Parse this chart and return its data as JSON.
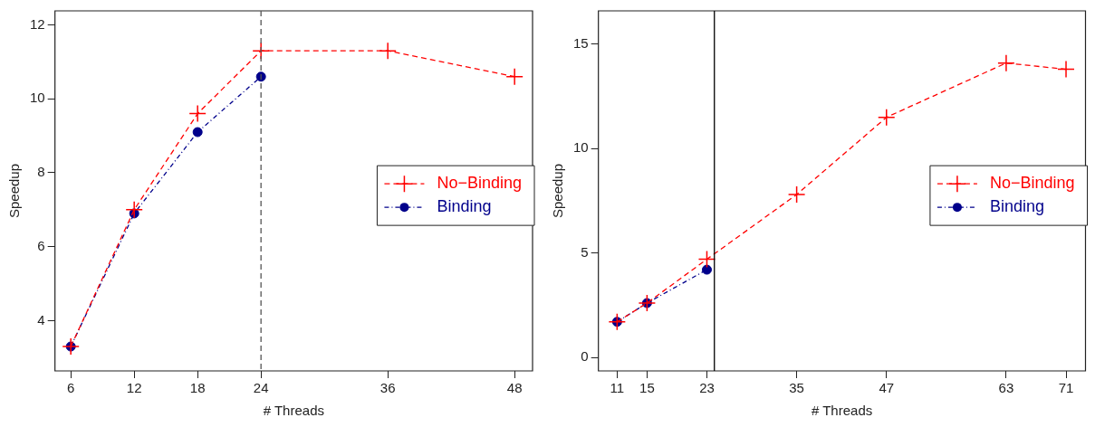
{
  "chart_data": [
    {
      "type": "line",
      "xlabel": "# Threads",
      "ylabel": "Speedup",
      "x": [
        6,
        12,
        18,
        24,
        36,
        48
      ],
      "series": [
        {
          "name": "No−Binding",
          "color": "#ff0000",
          "values": [
            3.3,
            7.0,
            9.6,
            11.3,
            11.3,
            10.6
          ],
          "marker": "cross",
          "line_style": "dashed"
        },
        {
          "name": "Binding",
          "color": "#00008b",
          "x": [
            6,
            12,
            18,
            24
          ],
          "values": [
            3.3,
            6.9,
            9.1,
            10.6
          ],
          "marker": "circle",
          "line_style": "dotted"
        }
      ],
      "xlim": [
        4.5,
        49.7
      ],
      "xticks": [
        6,
        12,
        18,
        24,
        36,
        48
      ],
      "ylim": [
        2.64,
        12.38
      ],
      "yticks": [
        4,
        6,
        8,
        10,
        12
      ],
      "ref_lines": [
        {
          "axis": "x",
          "value": 24,
          "color": "#555555",
          "line_style": "dashed"
        }
      ],
      "grid": false,
      "legend": "right"
    },
    {
      "type": "line",
      "xlabel": "# Threads",
      "ylabel": "Speedup",
      "x": [
        11,
        15,
        23,
        35,
        47,
        63,
        71
      ],
      "series": [
        {
          "name": "No−Binding",
          "color": "#ff0000",
          "values": [
            1.7,
            2.6,
            4.7,
            7.8,
            11.5,
            14.1,
            13.8
          ],
          "marker": "cross",
          "line_style": "dashed"
        },
        {
          "name": "Binding",
          "color": "#00008b",
          "x": [
            11,
            15,
            23
          ],
          "values": [
            1.7,
            2.6,
            4.2
          ],
          "marker": "circle",
          "line_style": "dotted"
        }
      ],
      "xlim": [
        8.5,
        73.6
      ],
      "xticks": [
        11,
        15,
        23,
        35,
        47,
        63,
        71
      ],
      "ylim": [
        -0.65,
        16.6
      ],
      "yticks": [
        0,
        5,
        10,
        15
      ],
      "ref_lines": [
        {
          "axis": "x",
          "value": 24,
          "color": "#000000",
          "line_style": "solid"
        }
      ],
      "grid": false,
      "legend": "right"
    }
  ]
}
